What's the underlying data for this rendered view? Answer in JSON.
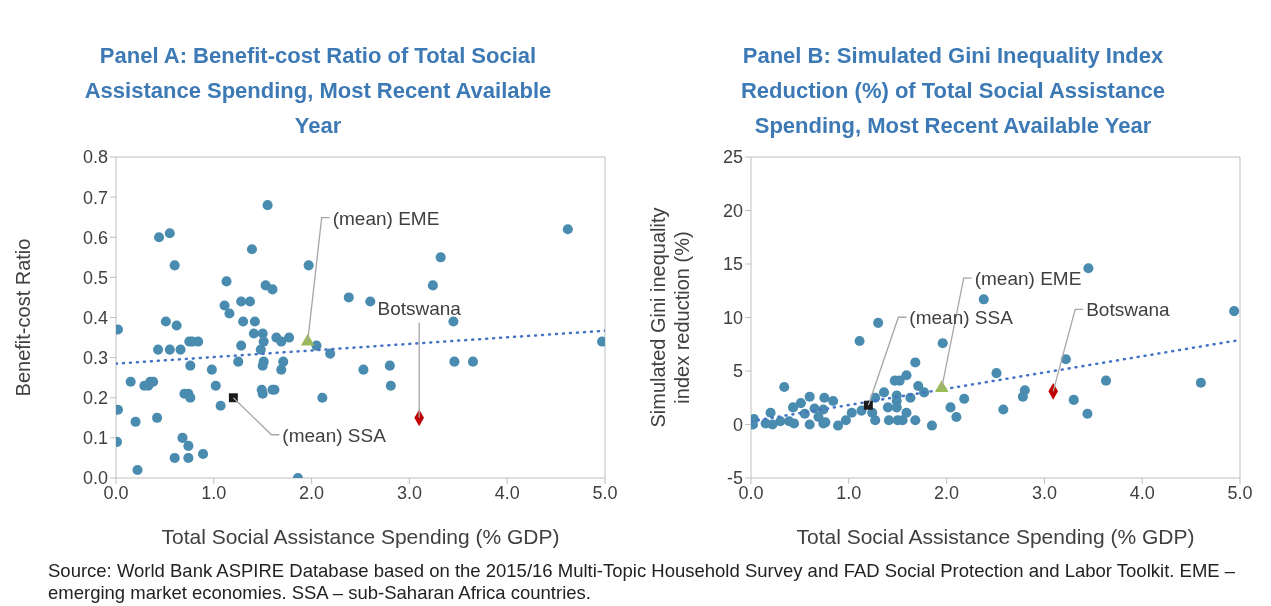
{
  "chart_data": [
    {
      "type": "scatter",
      "title": "Panel A: Benefit-cost Ratio of Total Social Assistance Spending, Most Recent Available Year",
      "xlabel": "Total Social Assistance Spending (% GDP)",
      "ylabel": "Benefit-cost Ratio",
      "xlim": [
        0,
        5
      ],
      "xticks": [
        {
          "value": 0,
          "label": "0.0"
        },
        {
          "value": 1,
          "label": "1.0"
        },
        {
          "value": 2,
          "label": "2.0"
        },
        {
          "value": 3,
          "label": "3.0"
        },
        {
          "value": 4,
          "label": "4.0"
        },
        {
          "value": 5,
          "label": "5.0"
        }
      ],
      "ylim": [
        0,
        0.8
      ],
      "yticks": [
        {
          "value": 0,
          "label": "0.0"
        },
        0.1,
        0.2,
        0.3,
        0.4,
        0.5,
        0.6,
        0.7,
        0.8
      ],
      "grid": false,
      "series": [
        {
          "type": "scatter",
          "marker": "circle",
          "color": "#4a8bb0",
          "x": [
            0.02,
            0.02,
            0.01,
            0.15,
            0.2,
            0.22,
            0.29,
            0.33,
            0.35,
            0.38,
            0.42,
            0.43,
            0.44,
            0.55,
            0.51,
            0.55,
            0.6,
            0.62,
            0.66,
            0.6,
            0.68,
            0.74,
            0.74,
            0.75,
            0.78,
            0.84,
            0.76,
            0.7,
            0.74,
            0.76,
            0.89,
            0.98,
            1.02,
            1.07,
            1.11,
            1.16,
            1.13,
            1.28,
            1.37,
            1.3,
            1.28,
            1.25,
            1.39,
            1.42,
            1.41,
            1.5,
            1.51,
            1.48,
            1.51,
            1.5,
            1.49,
            1.5,
            1.55,
            1.53,
            1.6,
            1.64,
            1.69,
            1.77,
            1.71,
            1.69,
            1.62,
            1.6,
            1.86,
            1.97,
            2.05,
            2.19,
            2.11,
            2.38,
            2.6,
            3.32,
            3.24,
            4.62,
            3.45,
            2.53,
            2.8,
            2.81,
            3.46,
            3.65,
            4.97
          ],
          "values": [
            0.37,
            0.17,
            0.09,
            0.24,
            0.14,
            0.02,
            0.23,
            0.23,
            0.24,
            0.24,
            0.15,
            0.32,
            0.6,
            0.61,
            0.39,
            0.32,
            0.53,
            0.38,
            0.32,
            0.05,
            0.1,
            0.08,
            0.05,
            0.34,
            0.34,
            0.34,
            0.28,
            0.21,
            0.21,
            0.2,
            0.06,
            0.27,
            0.23,
            0.18,
            0.43,
            0.41,
            0.49,
            0.44,
            0.44,
            0.39,
            0.33,
            0.29,
            0.57,
            0.39,
            0.36,
            0.36,
            0.34,
            0.32,
            0.29,
            0.28,
            0.22,
            0.21,
            0.68,
            0.48,
            0.47,
            0.35,
            0.34,
            0.35,
            0.29,
            0.27,
            0.22,
            0.22,
            0.0,
            0.53,
            0.33,
            0.31,
            0.2,
            0.45,
            0.44,
            0.55,
            0.48,
            0.62,
            0.39,
            0.27,
            0.28,
            0.23,
            0.29,
            0.29,
            0.34
          ]
        },
        {
          "type": "line",
          "marker": "none",
          "line_style": "dotted",
          "color": "#4472c4",
          "x": [
            0,
            5
          ],
          "values": [
            0.285,
            0.367
          ]
        },
        {
          "type": "scatter",
          "marker": "triangle",
          "color": "#9bbb59",
          "x": [
            1.96
          ],
          "values": [
            0.34
          ]
        },
        {
          "type": "scatter",
          "marker": "square",
          "color": "#1a1a1a",
          "x": [
            1.2
          ],
          "values": [
            0.2
          ]
        },
        {
          "type": "scatter",
          "marker": "diamond",
          "color": "#c00000",
          "x": [
            3.1
          ],
          "values": [
            0.15
          ]
        }
      ],
      "annotations": [
        {
          "text": "(mean) EME",
          "x": 1.96,
          "y": 0.34
        },
        {
          "text": "(mean) SSA",
          "x": 1.2,
          "y": 0.2
        },
        {
          "text": "Botswana",
          "x": 3.1,
          "y": 0.15
        },
        "Source: World Bank ASPIRE Database based on the 2015/16 Multi-Topic Household Survey and FAD Social Protection and Labor Toolkit. EME – emerging market economies. SSA – sub-Saharan Africa countries."
      ]
    },
    {
      "type": "scatter",
      "title": "Panel B: Simulated Gini Inequality Index Reduction (%) of Total Social Assistance Spending, Most Recent Available Year",
      "xlabel": "Total Social Assistance Spending (% GDP)",
      "ylabel": "Simulated Gini inequality index reduction (%)",
      "xlim": [
        0,
        5
      ],
      "xticks": [
        {
          "value": 0,
          "label": "0.0"
        },
        {
          "value": 1,
          "label": "1.0"
        },
        {
          "value": 2,
          "label": "2.0"
        },
        {
          "value": 3,
          "label": "3.0"
        },
        {
          "value": 4,
          "label": "4.0"
        },
        {
          "value": 5,
          "label": "5.0"
        }
      ],
      "ylim": [
        -5,
        25
      ],
      "yticks": [
        -5,
        0,
        5,
        10,
        15,
        20,
        25
      ],
      "grid": false,
      "series": [
        {
          "type": "scatter",
          "marker": "circle",
          "color": "#4a8bb0",
          "x": [
            0.03,
            0.02,
            0.15,
            0.2,
            0.22,
            0.3,
            0.34,
            0.39,
            0.43,
            0.44,
            0.51,
            0.55,
            0.6,
            0.6,
            0.65,
            0.69,
            0.74,
            0.75,
            0.74,
            0.76,
            0.84,
            0.89,
            0.97,
            1.03,
            1.11,
            1.13,
            1.3,
            1.24,
            1.27,
            1.27,
            1.36,
            1.4,
            1.41,
            1.47,
            1.52,
            1.49,
            1.49,
            1.49,
            1.5,
            1.55,
            1.59,
            1.59,
            1.63,
            1.68,
            1.68,
            1.71,
            1.77,
            1.85,
            1.96,
            2.04,
            2.1,
            2.18,
            2.51,
            2.38,
            3.45,
            4.94,
            3.22,
            3.63,
            2.8,
            2.78,
            3.3,
            3.44,
            2.58,
            4.6
          ],
          "values": [
            0.5,
            0.0,
            0.1,
            1.1,
            0.0,
            0.3,
            3.5,
            0.3,
            1.6,
            0.1,
            2.0,
            1.0,
            2.6,
            0.0,
            1.5,
            0.7,
            1.4,
            2.5,
            0.1,
            0.2,
            2.2,
            -0.1,
            0.4,
            1.1,
            7.8,
            1.3,
            9.5,
            1.1,
            0.4,
            2.5,
            3.0,
            1.6,
            0.4,
            4.1,
            4.1,
            2.7,
            2.2,
            1.6,
            0.4,
            0.4,
            4.6,
            1.1,
            2.5,
            5.8,
            0.4,
            3.6,
            3.0,
            -0.1,
            7.6,
            1.6,
            0.7,
            2.4,
            4.8,
            11.7,
            14.6,
            10.6,
            6.1,
            4.1,
            3.2,
            2.6,
            2.3,
            1.0,
            1.4,
            3.9
          ]
        },
        {
          "type": "line",
          "marker": "none",
          "line_style": "dotted",
          "color": "#4472c4",
          "x": [
            0,
            5
          ],
          "values": [
            0.3,
            7.9
          ]
        },
        {
          "type": "scatter",
          "marker": "triangle",
          "color": "#9bbb59",
          "x": [
            1.95
          ],
          "values": [
            3.4
          ]
        },
        {
          "type": "scatter",
          "marker": "square",
          "color": "#1a1a1a",
          "x": [
            1.2
          ],
          "values": [
            1.8
          ]
        },
        {
          "type": "scatter",
          "marker": "diamond",
          "color": "#c00000",
          "x": [
            3.09
          ],
          "values": [
            3.1
          ]
        }
      ],
      "annotations": [
        {
          "text": "(mean) EME",
          "x": 1.95,
          "y": 3.4
        },
        {
          "text": "(mean) SSA",
          "x": 1.2,
          "y": 1.8
        },
        {
          "text": "Botswana",
          "x": 3.09,
          "y": 3.1
        }
      ]
    }
  ]
}
